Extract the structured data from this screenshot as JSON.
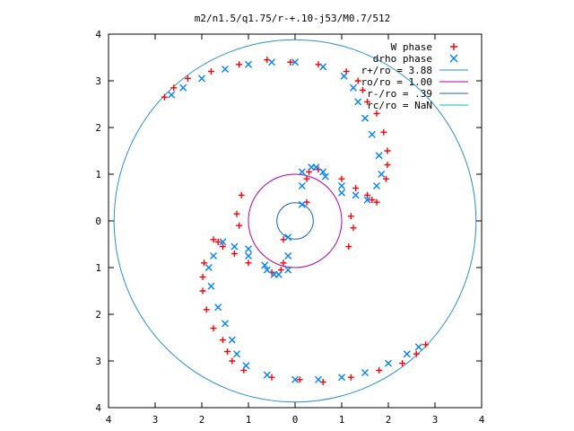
{
  "chart_data": {
    "type": "scatter",
    "title": "m2/n1.5/q1.75/r-+.10-j53/M0.7/512",
    "xlabel": "",
    "ylabel": "",
    "xlim": [
      -4,
      4
    ],
    "ylim": [
      -4,
      4
    ],
    "x_ticks": [
      -4,
      -3,
      -2,
      -1,
      0,
      1,
      2,
      3,
      4
    ],
    "y_ticks": [
      -4,
      -3,
      -2,
      -1,
      0,
      1,
      2,
      3,
      4
    ],
    "x_tick_labels": [
      "4",
      "3",
      "2",
      "1",
      "0",
      "1",
      "2",
      "3",
      "4"
    ],
    "y_tick_labels": [
      "4",
      "3",
      "2",
      "1",
      "0",
      "1",
      "2",
      "3",
      "4"
    ],
    "grid": false,
    "legend_position": "top-right",
    "legend": [
      {
        "label": "W phase",
        "marker": "+",
        "color": "#ff0000"
      },
      {
        "label": "drho phase",
        "marker": "x",
        "color": "#0080ff"
      },
      {
        "label": "r+/ro = 3.88",
        "marker": "line",
        "color": "#2a8fcf"
      },
      {
        "label": "ro/ro = 1.00",
        "marker": "line",
        "color": "#b000b0"
      },
      {
        "label": "r-/ro = .39",
        "marker": "line",
        "color": "#1565b8"
      },
      {
        "label": "rc/ro = NaN",
        "marker": "line",
        "color": "#00c0c0"
      }
    ],
    "circles": [
      {
        "name": "r+",
        "radius": 3.88,
        "color": "#2a8fcf"
      },
      {
        "name": "ro",
        "radius": 1.0,
        "color": "#b000b0"
      },
      {
        "name": "r-",
        "radius": 0.39,
        "color": "#1565b8"
      }
    ],
    "series": [
      {
        "marker": "+",
        "color": "#ff0000",
        "points": [
          [
            0.25,
            0.4
          ],
          [
            0.25,
            0.9
          ],
          [
            0.3,
            1.05
          ],
          [
            0.5,
            1.1
          ],
          [
            1.0,
            0.9
          ],
          [
            1.3,
            0.7
          ],
          [
            1.55,
            0.55
          ],
          [
            1.65,
            0.45
          ],
          [
            1.75,
            0.4
          ],
          [
            1.95,
            0.9
          ],
          [
            1.98,
            1.2
          ],
          [
            1.98,
            1.5
          ],
          [
            1.9,
            1.9
          ],
          [
            1.75,
            2.3
          ],
          [
            1.55,
            2.55
          ],
          [
            1.45,
            2.8
          ],
          [
            1.35,
            3.0
          ],
          [
            1.1,
            3.2
          ],
          [
            0.5,
            3.35
          ],
          [
            -0.1,
            3.4
          ],
          [
            -0.6,
            3.45
          ],
          [
            -1.2,
            3.35
          ],
          [
            -1.8,
            3.2
          ],
          [
            -2.3,
            3.05
          ],
          [
            -2.6,
            2.85
          ],
          [
            -2.8,
            2.65
          ],
          [
            -0.25,
            -0.4
          ],
          [
            -0.25,
            -0.9
          ],
          [
            -0.3,
            -1.05
          ],
          [
            -0.5,
            -1.1
          ],
          [
            -1.0,
            -0.9
          ],
          [
            -1.3,
            -0.7
          ],
          [
            -1.55,
            -0.55
          ],
          [
            -1.65,
            -0.45
          ],
          [
            -1.75,
            -0.4
          ],
          [
            -1.95,
            -0.9
          ],
          [
            -1.98,
            -1.2
          ],
          [
            -1.98,
            -1.5
          ],
          [
            -1.9,
            -1.9
          ],
          [
            -1.75,
            -2.3
          ],
          [
            -1.55,
            -2.55
          ],
          [
            -1.45,
            -2.8
          ],
          [
            -1.35,
            -3.0
          ],
          [
            -1.1,
            -3.2
          ],
          [
            -0.5,
            -3.35
          ],
          [
            0.1,
            -3.4
          ],
          [
            0.6,
            -3.45
          ],
          [
            1.2,
            -3.35
          ],
          [
            1.8,
            -3.2
          ],
          [
            2.3,
            -3.05
          ],
          [
            2.6,
            -2.85
          ],
          [
            2.8,
            -2.65
          ],
          [
            -1.15,
            0.55
          ],
          [
            -1.25,
            0.15
          ],
          [
            -1.2,
            -0.1
          ],
          [
            1.15,
            -0.55
          ],
          [
            1.25,
            -0.15
          ],
          [
            1.2,
            0.1
          ]
        ]
      },
      {
        "marker": "x",
        "color": "#0080ff",
        "points": [
          [
            0.15,
            0.35
          ],
          [
            0.15,
            0.75
          ],
          [
            0.15,
            1.05
          ],
          [
            0.35,
            1.15
          ],
          [
            0.6,
            1.05
          ],
          [
            1.0,
            0.75
          ],
          [
            1.3,
            0.55
          ],
          [
            1.55,
            0.45
          ],
          [
            1.75,
            0.75
          ],
          [
            1.85,
            1.0
          ],
          [
            1.8,
            1.4
          ],
          [
            1.65,
            1.85
          ],
          [
            1.5,
            2.2
          ],
          [
            1.35,
            2.55
          ],
          [
            1.25,
            2.85
          ],
          [
            1.05,
            3.1
          ],
          [
            0.6,
            3.3
          ],
          [
            0.0,
            3.4
          ],
          [
            -0.5,
            3.4
          ],
          [
            -1.0,
            3.35
          ],
          [
            -1.5,
            3.25
          ],
          [
            -2.0,
            3.05
          ],
          [
            -2.4,
            2.85
          ],
          [
            -2.65,
            2.7
          ],
          [
            -0.15,
            -0.35
          ],
          [
            -0.15,
            -0.75
          ],
          [
            -0.15,
            -1.05
          ],
          [
            -0.35,
            -1.15
          ],
          [
            -0.6,
            -1.05
          ],
          [
            -1.0,
            -0.75
          ],
          [
            -1.3,
            -0.55
          ],
          [
            -1.55,
            -0.45
          ],
          [
            -1.75,
            -0.75
          ],
          [
            -1.85,
            -1.0
          ],
          [
            -1.8,
            -1.4
          ],
          [
            -1.65,
            -1.85
          ],
          [
            -1.5,
            -2.2
          ],
          [
            -1.35,
            -2.55
          ],
          [
            -1.25,
            -2.85
          ],
          [
            -1.05,
            -3.1
          ],
          [
            -0.6,
            -3.3
          ],
          [
            0.0,
            -3.4
          ],
          [
            0.5,
            -3.4
          ],
          [
            1.0,
            -3.35
          ],
          [
            1.5,
            -3.25
          ],
          [
            2.0,
            -3.05
          ],
          [
            2.4,
            -2.85
          ],
          [
            2.65,
            -2.7
          ],
          [
            -0.65,
            -0.95
          ],
          [
            -0.45,
            -1.15
          ],
          [
            0.65,
            0.95
          ],
          [
            0.45,
            1.15
          ],
          [
            1.0,
            0.6
          ],
          [
            -1.0,
            -0.6
          ]
        ]
      }
    ]
  }
}
